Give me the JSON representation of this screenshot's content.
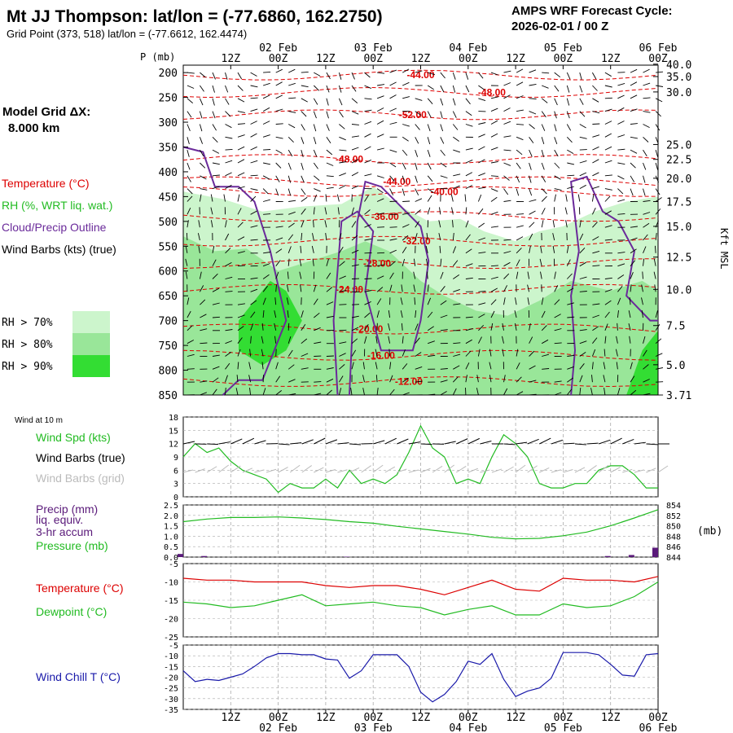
{
  "header": {
    "station_title": "Mt JJ Thompson:  lat/lon = (-77.6860, 162.2750)",
    "grid_point": "Grid Point (373, 518) lat/lon = (-77.6612, 162.4474)",
    "cycle_title": "AMPS WRF Forecast Cycle:",
    "cycle_value": "2026-02-01 / 00  Z"
  },
  "left_panel": {
    "model_grid_label": "Model Grid ΔX:",
    "model_grid_value": "8.000 km",
    "legend_temperature": "Temperature (°C)",
    "legend_rh": "RH (%, WRT liq. wat.)",
    "legend_cloud": "Cloud/Precip Outline",
    "legend_wind": "Wind Barbs (kts) (true)",
    "rh_levels": [
      {
        "label": "RH > 70%",
        "color": "#ccf5cc"
      },
      {
        "label": "RH > 80%",
        "color": "#99e699"
      },
      {
        "label": "RH > 90%",
        "color": "#33dd33"
      }
    ]
  },
  "colors": {
    "temperature": "#dd0000",
    "rh_text": "#22bb22",
    "cloud": "#6a2a9a",
    "wind_true": "#000000",
    "wind_grid": "#bbbbbb",
    "dewpoint": "#22bb22",
    "wind_chill": "#1a1aaa",
    "pressure": "#22bb22",
    "precip": "#5a1a7a",
    "grid": "#aaaaaa"
  },
  "time_axis": {
    "hours": [
      0,
      120
    ],
    "top_ticks": [
      {
        "h": 12,
        "label": "12Z"
      },
      {
        "h": 24,
        "label": "00Z"
      },
      {
        "h": 36,
        "label": "12Z"
      },
      {
        "h": 48,
        "label": "00Z"
      },
      {
        "h": 60,
        "label": "12Z"
      },
      {
        "h": 72,
        "label": "00Z"
      },
      {
        "h": 84,
        "label": "12Z"
      },
      {
        "h": 96,
        "label": "00Z"
      },
      {
        "h": 108,
        "label": "12Z"
      },
      {
        "h": 120,
        "label": "00Z"
      }
    ],
    "date_labels": [
      {
        "h": 24,
        "label": "02 Feb"
      },
      {
        "h": 48,
        "label": "03 Feb"
      },
      {
        "h": 72,
        "label": "04 Feb"
      },
      {
        "h": 96,
        "label": "05 Feb"
      },
      {
        "h": 120,
        "label": "06 Feb"
      }
    ]
  },
  "chart_data": [
    {
      "type": "heatmap",
      "name": "vertical-cross-section",
      "ylabel": "P (mb)",
      "ylabel_right": "Kft MSL",
      "pressure_range": [
        850,
        185
      ],
      "pressure_ticks": [
        200,
        250,
        300,
        350,
        400,
        450,
        500,
        550,
        600,
        650,
        700,
        750,
        800,
        850
      ],
      "height_ticks": [
        {
          "p": 183,
          "label": "40.0"
        },
        {
          "p": 208,
          "label": "35.0"
        },
        {
          "p": 239,
          "label": "30.0"
        },
        {
          "p": 345,
          "label": "25.0"
        },
        {
          "p": 375,
          "label": "22.5"
        },
        {
          "p": 413,
          "label": "20.0"
        },
        {
          "p": 460,
          "label": "17.5"
        },
        {
          "p": 510,
          "label": "15.0"
        },
        {
          "p": 572,
          "label": "12.5"
        },
        {
          "p": 637,
          "label": "10.0"
        },
        {
          "p": 710,
          "label": "7.5"
        },
        {
          "p": 789,
          "label": "5.0"
        },
        {
          "p": 850,
          "label": "3.71"
        }
      ],
      "temperature_labels": [
        {
          "h": 60,
          "p": 205,
          "label": "-44.00"
        },
        {
          "h": 78,
          "p": 240,
          "label": "-48.00"
        },
        {
          "h": 58,
          "p": 285,
          "label": "-52.00"
        },
        {
          "h": 42,
          "p": 375,
          "label": "-48.00"
        },
        {
          "h": 54,
          "p": 420,
          "label": "-44.00"
        },
        {
          "h": 66,
          "p": 440,
          "label": "-40.00"
        },
        {
          "h": 51,
          "p": 490,
          "label": "-36.00"
        },
        {
          "h": 59,
          "p": 540,
          "label": "-32.00"
        },
        {
          "h": 49,
          "p": 585,
          "label": "-28.00"
        },
        {
          "h": 42,
          "p": 637,
          "label": "-24.00"
        },
        {
          "h": 47,
          "p": 717,
          "label": "-20.00"
        },
        {
          "h": 50,
          "p": 770,
          "label": "-16.00"
        },
        {
          "h": 57,
          "p": 823,
          "label": "-12.00"
        }
      ]
    },
    {
      "type": "line",
      "name": "wind-10m",
      "title": "Wind at 10 m",
      "legend": [
        "Wind Spd (kts)",
        "Wind Barbs (true)",
        "Wind Barbs (grid)"
      ],
      "ylim": [
        0,
        18
      ],
      "yticks": [
        0,
        3,
        6,
        9,
        12,
        15,
        18
      ],
      "x": [
        0,
        3,
        6,
        9,
        12,
        15,
        18,
        21,
        24,
        27,
        30,
        33,
        36,
        39,
        42,
        45,
        48,
        51,
        54,
        57,
        60,
        63,
        66,
        69,
        72,
        75,
        78,
        81,
        84,
        87,
        90,
        93,
        96,
        99,
        102,
        105,
        108,
        111,
        114,
        117,
        120
      ],
      "series": [
        {
          "name": "Wind Spd (kts)",
          "values": [
            9,
            12,
            10,
            11,
            8,
            6,
            5,
            4,
            1,
            3,
            2,
            2,
            4,
            2,
            6,
            3,
            4,
            3,
            5,
            10,
            16,
            11,
            9,
            3,
            4,
            3,
            9,
            14,
            12,
            9,
            3,
            2,
            2,
            3,
            3,
            6,
            7,
            7,
            5,
            2,
            2
          ]
        }
      ]
    },
    {
      "type": "line",
      "name": "precip-pressure",
      "legend": [
        "Precip (mm)",
        "liq. equiv.",
        "3-hr accum",
        "Pressure (mb)"
      ],
      "ylim_left": [
        0,
        2.5
      ],
      "yticks_left": [
        "0.0",
        "0.5",
        "1.0",
        "1.5",
        "2.0",
        "2.5"
      ],
      "ylim_right": [
        844,
        854
      ],
      "yticks_right": [
        "844",
        "846",
        "848",
        "850",
        "852",
        "854"
      ],
      "unit_right": "(mb)",
      "x": [
        0,
        6,
        12,
        18,
        24,
        30,
        36,
        42,
        48,
        54,
        60,
        66,
        72,
        78,
        84,
        90,
        96,
        102,
        108,
        114,
        120
      ],
      "series": [
        {
          "name": "Pressure (mb)",
          "values": [
            850.8,
            851.3,
            851.6,
            851.6,
            851.7,
            851.5,
            851.2,
            850.8,
            850.5,
            849.9,
            849.4,
            848.9,
            848.4,
            847.8,
            847.5,
            847.6,
            848.1,
            848.8,
            850.0,
            851.5,
            853.1
          ]
        },
        {
          "name": "Precip (mm)",
          "values": [
            0.15,
            0.05,
            0,
            0,
            0,
            0,
            0,
            0.02,
            0,
            0,
            0,
            0,
            0,
            0,
            0,
            0,
            0,
            0,
            0.05,
            0.1,
            0.45
          ]
        }
      ]
    },
    {
      "type": "line",
      "name": "temperature-dewpoint",
      "legend": [
        "Temperature (°C)",
        "Dewpoint (°C)"
      ],
      "ylim": [
        -25,
        -5
      ],
      "yticks": [
        -5,
        -10,
        -15,
        -20,
        -25
      ],
      "x": [
        0,
        6,
        12,
        18,
        24,
        30,
        36,
        42,
        48,
        54,
        60,
        66,
        72,
        78,
        84,
        90,
        96,
        102,
        108,
        114,
        120
      ],
      "series": [
        {
          "name": "Temperature (°C)",
          "values": [
            -9,
            -9.5,
            -9.5,
            -10,
            -10,
            -10,
            -11,
            -11.5,
            -11,
            -11,
            -12,
            -13.5,
            -11.5,
            -9.5,
            -12,
            -12.5,
            -9,
            -9.5,
            -9.5,
            -10,
            -8.5
          ]
        },
        {
          "name": "Dewpoint (°C)",
          "values": [
            -15.5,
            -16,
            -17,
            -16.5,
            -15,
            -13.5,
            -16.5,
            -16,
            -15.5,
            -16.5,
            -17,
            -19,
            -17.5,
            -16.5,
            -19,
            -19,
            -16,
            -17,
            -16.5,
            -14,
            -10
          ]
        }
      ]
    },
    {
      "type": "line",
      "name": "wind-chill",
      "legend": [
        "Wind Chill T (°C)"
      ],
      "ylim": [
        -35,
        -5
      ],
      "yticks": [
        -5,
        -10,
        -15,
        -20,
        -25,
        -30,
        -35
      ],
      "x": [
        0,
        3,
        6,
        9,
        12,
        15,
        18,
        21,
        24,
        27,
        30,
        33,
        36,
        39,
        42,
        45,
        48,
        51,
        54,
        57,
        60,
        63,
        66,
        69,
        72,
        75,
        78,
        81,
        84,
        87,
        90,
        93,
        96,
        99,
        102,
        105,
        108,
        111,
        114,
        117,
        120
      ],
      "series": [
        {
          "name": "Wind Chill T (°C)",
          "values": [
            -17,
            -22,
            -21,
            -21.5,
            -20,
            -18.5,
            -15,
            -11,
            -9,
            -9,
            -9.5,
            -9.5,
            -11.5,
            -12,
            -20.5,
            -17,
            -9.5,
            -9.5,
            -9.5,
            -15,
            -27,
            -31.5,
            -28,
            -22,
            -12.5,
            -14,
            -9,
            -21,
            -29,
            -26.5,
            -25,
            -20.5,
            -8.5,
            -8.5,
            -8.5,
            -9.5,
            -14,
            -19,
            -19.5,
            -9.5,
            -9
          ]
        }
      ]
    }
  ]
}
